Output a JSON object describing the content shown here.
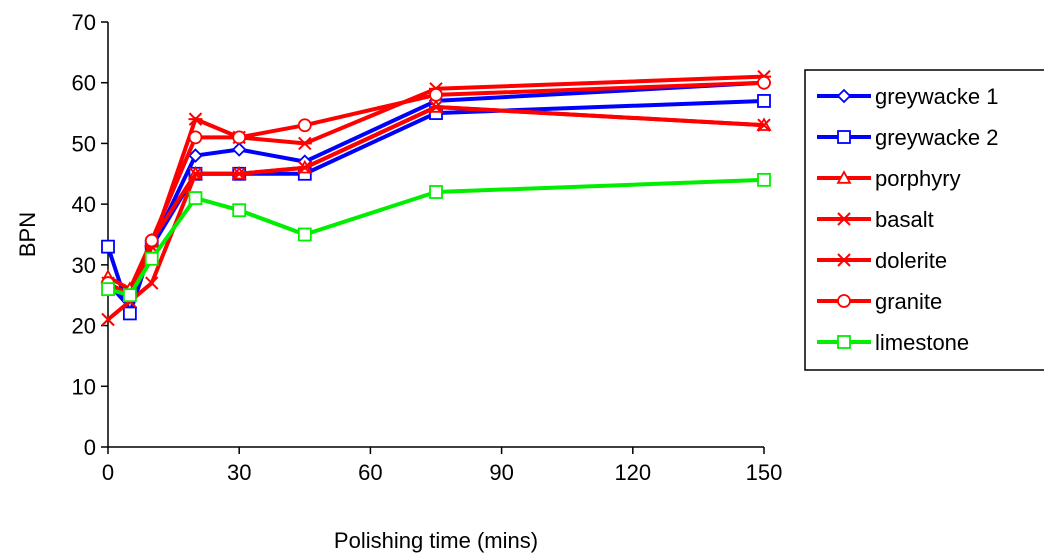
{
  "chart_data": {
    "type": "line",
    "title": "",
    "xlabel": "Polishing time (mins)",
    "ylabel": "BPN",
    "xlim": [
      0,
      150
    ],
    "ylim": [
      0,
      70
    ],
    "xticks": [
      0,
      30,
      60,
      90,
      120,
      150
    ],
    "yticks": [
      0,
      10,
      20,
      30,
      40,
      50,
      60,
      70
    ],
    "grid": false,
    "legend_position": "right",
    "x": [
      0,
      5,
      10,
      20,
      30,
      45,
      75,
      150
    ],
    "series": [
      {
        "name": "greywacke 1",
        "color": "#0000FF",
        "marker": "diamond",
        "values": [
          27,
          23,
          33,
          48,
          49,
          47,
          57,
          60
        ]
      },
      {
        "name": "greywacke 2",
        "color": "#0000FF",
        "marker": "square",
        "values": [
          33,
          22,
          33,
          45,
          45,
          45,
          55,
          57
        ]
      },
      {
        "name": "porphyry",
        "color": "#FF0000",
        "marker": "triangle",
        "values": [
          28,
          26,
          34,
          45,
          45,
          46,
          56,
          53
        ]
      },
      {
        "name": "basalt",
        "color": "#FF0000",
        "marker": "x",
        "values": [
          21,
          24,
          27,
          45,
          45,
          46,
          56,
          53
        ]
      },
      {
        "name": "dolerite",
        "color": "#FF0000",
        "marker": "star",
        "values": [
          27,
          25,
          33,
          54,
          51,
          50,
          59,
          61
        ]
      },
      {
        "name": "granite",
        "color": "#FF0000",
        "marker": "circle",
        "values": [
          27,
          25,
          34,
          51,
          51,
          53,
          58,
          60
        ]
      },
      {
        "name": "limestone",
        "color": "#00EE00",
        "marker": "square",
        "values": [
          26,
          25,
          31,
          41,
          39,
          35,
          42,
          44
        ]
      }
    ]
  }
}
